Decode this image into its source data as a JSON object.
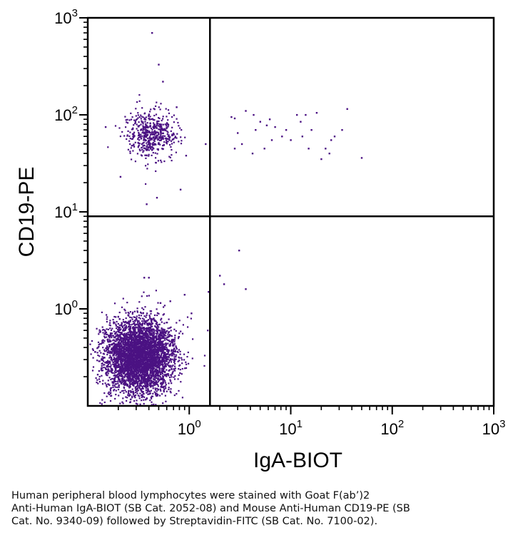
{
  "chart_data": {
    "type": "scatter",
    "subtype": "flow-cytometry-dot-plot",
    "xlabel": "IgA-BIOT",
    "ylabel": "CD19-PE",
    "x_scale": "log",
    "y_scale": "log",
    "xlim": [
      0.1,
      1000
    ],
    "ylim": [
      0.1,
      1000
    ],
    "x_ticks": [
      {
        "base": "10",
        "exp": "0",
        "value": 1
      },
      {
        "base": "10",
        "exp": "1",
        "value": 10
      },
      {
        "base": "10",
        "exp": "2",
        "value": 100
      },
      {
        "base": "10",
        "exp": "3",
        "value": 1000
      }
    ],
    "y_ticks": [
      {
        "base": "10",
        "exp": "0",
        "value": 1
      },
      {
        "base": "10",
        "exp": "1",
        "value": 10
      },
      {
        "base": "10",
        "exp": "2",
        "value": 100
      },
      {
        "base": "10",
        "exp": "3",
        "value": 1000
      }
    ],
    "quadrant_gates": {
      "x": 1.6,
      "y": 9
    },
    "dot_color": "#4b1283",
    "populations": [
      {
        "name": "CD19- IgA- (lower-left)",
        "center_x": 0.32,
        "center_y": 0.32,
        "spread_log_x": 0.17,
        "spread_log_y": 0.19,
        "count": 4200
      },
      {
        "name": "CD19+ IgA- (upper-left)",
        "center_x": 0.42,
        "center_y": 62,
        "spread_log_x": 0.13,
        "spread_log_y": 0.13,
        "count": 520
      }
    ],
    "sparse_points": [
      {
        "x": 0.43,
        "y": 700
      },
      {
        "x": 0.5,
        "y": 330
      },
      {
        "x": 0.55,
        "y": 220
      },
      {
        "x": 0.75,
        "y": 120
      },
      {
        "x": 0.15,
        "y": 75
      },
      {
        "x": 0.93,
        "y": 38
      },
      {
        "x": 0.48,
        "y": 14
      },
      {
        "x": 0.38,
        "y": 12
      },
      {
        "x": 0.82,
        "y": 17
      },
      {
        "x": 1.45,
        "y": 50
      },
      {
        "x": 0.21,
        "y": 23
      },
      {
        "x": 2.6,
        "y": 95
      },
      {
        "x": 2.8,
        "y": 92
      },
      {
        "x": 3.6,
        "y": 110
      },
      {
        "x": 4.3,
        "y": 100
      },
      {
        "x": 5.0,
        "y": 85
      },
      {
        "x": 5.8,
        "y": 78
      },
      {
        "x": 6.2,
        "y": 90
      },
      {
        "x": 7.0,
        "y": 75
      },
      {
        "x": 8.2,
        "y": 60
      },
      {
        "x": 9.0,
        "y": 70
      },
      {
        "x": 11.5,
        "y": 100
      },
      {
        "x": 12.5,
        "y": 85
      },
      {
        "x": 14.0,
        "y": 100
      },
      {
        "x": 18.0,
        "y": 105
      },
      {
        "x": 16.0,
        "y": 70
      },
      {
        "x": 25.0,
        "y": 55
      },
      {
        "x": 27.0,
        "y": 60
      },
      {
        "x": 36.0,
        "y": 115
      },
      {
        "x": 32.0,
        "y": 70
      },
      {
        "x": 2.8,
        "y": 45
      },
      {
        "x": 3.3,
        "y": 50
      },
      {
        "x": 4.2,
        "y": 40
      },
      {
        "x": 5.5,
        "y": 45
      },
      {
        "x": 6.5,
        "y": 55
      },
      {
        "x": 10.0,
        "y": 55
      },
      {
        "x": 15.0,
        "y": 45
      },
      {
        "x": 20.0,
        "y": 35
      },
      {
        "x": 22.0,
        "y": 45
      },
      {
        "x": 24.0,
        "y": 40
      },
      {
        "x": 50.0,
        "y": 36
      },
      {
        "x": 3.0,
        "y": 65
      },
      {
        "x": 4.5,
        "y": 70
      },
      {
        "x": 13.0,
        "y": 60
      },
      {
        "x": 3.1,
        "y": 4.0
      },
      {
        "x": 2.0,
        "y": 2.2
      },
      {
        "x": 2.2,
        "y": 1.8
      },
      {
        "x": 3.6,
        "y": 1.6
      },
      {
        "x": 1.55,
        "y": 1.5
      },
      {
        "x": 0.36,
        "y": 2.1
      },
      {
        "x": 0.4,
        "y": 2.1
      },
      {
        "x": 0.9,
        "y": 1.4
      },
      {
        "x": 0.65,
        "y": 1.2
      },
      {
        "x": 1.05,
        "y": 0.9
      },
      {
        "x": 0.52,
        "y": 1.15
      }
    ]
  },
  "caption": {
    "line1": "Human peripheral blood lymphocytes were stained with Goat F(ab’)2",
    "line2": "Anti-Human IgA-BIOT (SB Cat. 2052-08) and Mouse Anti-Human CD19-PE (SB",
    "line3": "Cat. No. 9340-09) followed by Streptavidin-FITC (SB Cat. No. 7100-02)."
  }
}
